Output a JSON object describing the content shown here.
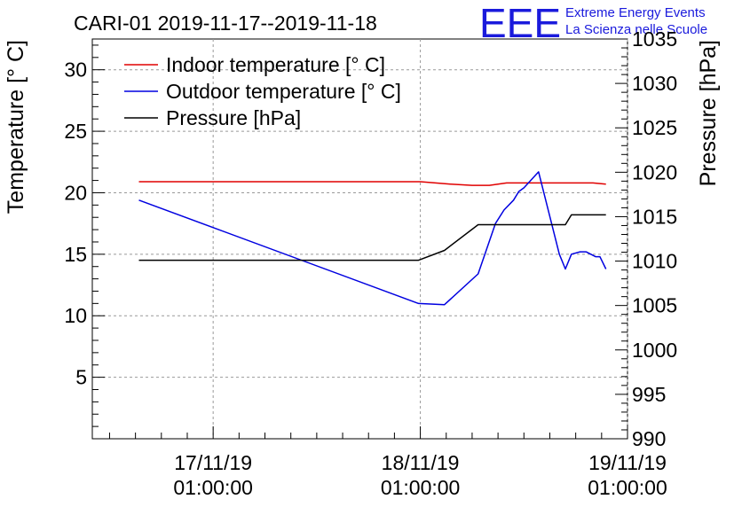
{
  "chart_data": {
    "type": "line",
    "title": "CARI-01 2019-11-17--2019-11-18",
    "ylabel": "Temperature [° C]",
    "y2label": "Pressure [hPa]",
    "ylim": [
      0,
      32.5
    ],
    "y2lim": [
      990,
      1035
    ],
    "yticks": [
      5,
      10,
      15,
      20,
      25,
      30
    ],
    "y2ticks": [
      990,
      995,
      1000,
      1005,
      1010,
      1015,
      1020,
      1025,
      1030,
      1035
    ],
    "xticks": [
      {
        "t": 0,
        "line1": "17/11/19",
        "line2": "01:00:00"
      },
      {
        "t": 24,
        "line1": "18/11/19",
        "line2": "01:00:00"
      },
      {
        "t": 48,
        "line1": "19/11/19",
        "line2": "01:00:00"
      }
    ],
    "xlim": [
      -14,
      48
    ],
    "grid": true,
    "legend": "top-left",
    "series": [
      {
        "name": "Indoor temperature [° C]",
        "axis": "left",
        "color": "#e00000",
        "x": [
          -8.6,
          24,
          27.5,
          30,
          32,
          34,
          38,
          44,
          45.5
        ],
        "y": [
          20.9,
          20.9,
          20.7,
          20.6,
          20.6,
          20.8,
          20.8,
          20.8,
          20.7
        ]
      },
      {
        "name": "Outdoor temperature [° C]",
        "axis": "left",
        "color": "#0000e0",
        "x": [
          -8.6,
          23.8,
          26.8,
          30.7,
          32.7,
          33.7,
          34.8,
          35.4,
          36,
          37.7,
          38.2,
          40.1,
          40.8,
          41.5,
          42.5,
          43.2,
          44.3,
          44.8,
          45.5
        ],
        "y": [
          19.4,
          11.0,
          10.9,
          13.4,
          17.5,
          18.6,
          19.4,
          20.1,
          20.4,
          21.7,
          20.3,
          15.0,
          13.8,
          15.0,
          15.2,
          15.2,
          14.8,
          14.8,
          13.8
        ]
      },
      {
        "name": "Pressure [hPa]",
        "axis": "right",
        "color": "#000000",
        "x": [
          -8.6,
          23.8,
          26.8,
          30.7,
          40.8,
          41.5,
          45.5
        ],
        "y": [
          1010.1,
          1010.1,
          1011.2,
          1014.1,
          1014.1,
          1015.2,
          1015.2
        ]
      }
    ]
  },
  "logo": {
    "mark": "EEE",
    "line1": "Extreme Energy Events",
    "line2": "La Scienza nelle Scuole",
    "color": "#1a1adc"
  }
}
